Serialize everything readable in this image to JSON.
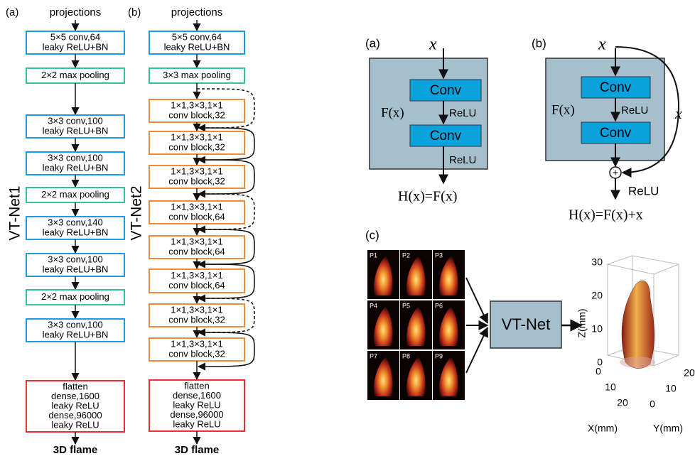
{
  "left": {
    "a": {
      "label": "(a)",
      "input": "projections",
      "output": "3D flame",
      "name": "VT-Net1",
      "layers": [
        {
          "lines": [
            "5×5 conv,64",
            "leaky ReLU+BN"
          ],
          "color": "#1a9be6"
        },
        {
          "lines": [
            "2×2 max pooling"
          ],
          "color": "#2fc4a0"
        },
        {
          "lines": [
            "3×3 conv,100",
            "leaky ReLU+BN"
          ],
          "color": "#1a9be6"
        },
        {
          "lines": [
            "3×3 conv,100",
            "leaky ReLU+BN"
          ],
          "color": "#1a9be6"
        },
        {
          "lines": [
            "2×2 max pooling"
          ],
          "color": "#2fc4a0"
        },
        {
          "lines": [
            "3×3 conv,140",
            "leaky ReLU+BN"
          ],
          "color": "#1a9be6"
        },
        {
          "lines": [
            "3×3 conv,100",
            "leaky ReLU+BN"
          ],
          "color": "#1a9be6"
        },
        {
          "lines": [
            "2×2 max pooling"
          ],
          "color": "#2fc4a0"
        },
        {
          "lines": [
            "3×3 conv,100",
            "leaky ReLU+BN"
          ],
          "color": "#1a9be6"
        },
        {
          "lines": [
            "flatten",
            "dense,1600",
            "leaky ReLU",
            "dense,96000",
            "leaky ReLU"
          ],
          "color": "#e8322e"
        }
      ]
    },
    "b": {
      "label": "(b)",
      "input": "projections",
      "output": "3D flame",
      "name": "VT-Net2",
      "layers": [
        {
          "lines": [
            "5×5 conv,64",
            "leaky ReLU+BN"
          ],
          "color": "#1a9be6"
        },
        {
          "lines": [
            "3×3  max pooling"
          ],
          "color": "#2fc4a0"
        },
        {
          "lines": [
            "1×1,3×3,1×1",
            "conv block,32"
          ],
          "color": "#f08a3c"
        },
        {
          "lines": [
            "1×1,3×3,1×1",
            "conv block,32"
          ],
          "color": "#f08a3c"
        },
        {
          "lines": [
            "1×1,3×3,1×1",
            "conv block,32"
          ],
          "color": "#f08a3c"
        },
        {
          "lines": [
            "1×1,3×3,1×1",
            "conv block,64"
          ],
          "color": "#f08a3c"
        },
        {
          "lines": [
            "1×1,3×3,1×1",
            "conv block,64"
          ],
          "color": "#f08a3c"
        },
        {
          "lines": [
            "1×1,3×3,1×1",
            "conv block,64"
          ],
          "color": "#f08a3c"
        },
        {
          "lines": [
            "1×1,3×3,1×1",
            "conv block,32"
          ],
          "color": "#f08a3c"
        },
        {
          "lines": [
            "1×1,3×3,1×1",
            "conv block,32"
          ],
          "color": "#f08a3c"
        },
        {
          "lines": [
            "flatten",
            "dense,1600",
            "leaky ReLU",
            "dense,96000",
            "leaky ReLU"
          ],
          "color": "#e8322e"
        }
      ]
    }
  },
  "right": {
    "a": {
      "label": "(a)",
      "input": "x",
      "conv1": "Conv",
      "relu1": "ReLU",
      "conv2": "Conv",
      "relu2": "ReLU",
      "f": "F(x)",
      "equation": "H(x)=F(x)"
    },
    "b": {
      "label": "(b)",
      "input": "x",
      "conv1": "Conv",
      "relu1": "ReLU",
      "conv2": "Conv",
      "f": "F(x)",
      "skip": "x",
      "relu2": "ReLU",
      "equation": "H(x)=F(x)+x"
    },
    "c": {
      "label": "(c)",
      "projections": [
        "P1",
        "P2",
        "P3",
        "P4",
        "P5",
        "P6",
        "P7",
        "P8",
        "P9"
      ],
      "network": "VT-Net",
      "z_ticks": [
        "30",
        "20",
        "10",
        "0"
      ],
      "z_label": "Z(mm)",
      "x_ticks": [
        "0",
        "10",
        "20"
      ],
      "x_label": "X(mm)",
      "y_ticks": [
        "0",
        "10",
        "20"
      ],
      "y_label": "Y(mm)"
    }
  }
}
